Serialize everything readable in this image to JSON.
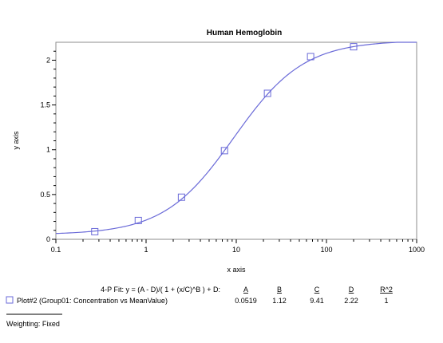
{
  "chart_data": {
    "type": "scatter",
    "title": "Human Hemoglobin",
    "xlabel": "x axis",
    "ylabel": "y axis",
    "x_scale": "log",
    "xlim": [
      0.1,
      1000
    ],
    "ylim": [
      0,
      2.2
    ],
    "x_ticks": [
      "0.1",
      "1",
      "10",
      "100",
      "1000"
    ],
    "y_ticks": [
      "0",
      "0.5",
      "1",
      "1.5",
      "2"
    ],
    "series": [
      {
        "name": "Plot#2 (Group01: Concentration vs MeanValue)",
        "marker": "square",
        "color": "#6a6ad8",
        "x": [
          0.27,
          0.82,
          2.47,
          7.4,
          22.2,
          66.7,
          200
        ],
        "y": [
          0.085,
          0.21,
          0.47,
          0.99,
          1.63,
          2.04,
          2.15
        ]
      }
    ],
    "fit": {
      "equation_label": "4-P Fit:  y = (A - D)/( 1 + (x/C)^B ) + D:",
      "param_headers": [
        "A",
        "B",
        "C",
        "D",
        "R^2"
      ],
      "param_values": [
        "0.0519",
        "1.12",
        "9.41",
        "2.22",
        "1"
      ],
      "A": 0.0519,
      "B": 1.12,
      "C": 9.41,
      "D": 2.22
    },
    "weighting": "Weighting: Fixed"
  }
}
